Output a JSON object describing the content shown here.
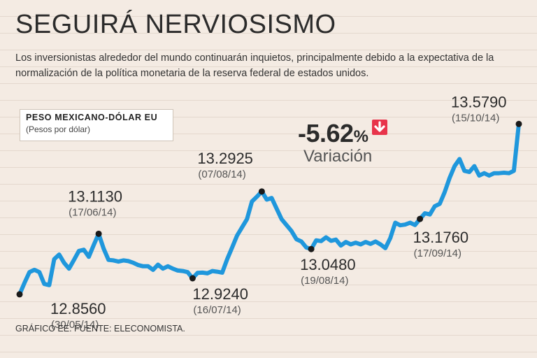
{
  "header": {
    "title": "SEGUIRÁ NERVIOSISMO",
    "subtitle": "Los inversionistas alrededor del mundo continuarán inquietos, principalmente debido a la expectativa de la normalización de la política monetaria de la reserva federal de estados unidos."
  },
  "legend": {
    "title": "PESO MEXICANO-DÓLAR EU",
    "subtitle": "(Pesos por dólar)"
  },
  "variation": {
    "value": "-5.62",
    "percent": "%",
    "label": "Variación",
    "arrow_icon": "arrow-down-icon"
  },
  "footer": {
    "source": "GRÁFICO EE. FUENTE: ELECONOMISTA."
  },
  "colors": {
    "line": "#1f97dc",
    "marker": "#1a1a1a",
    "background": "#f4ebe3",
    "arrow": "#e8344b"
  },
  "chart_data": {
    "type": "line",
    "title": "SEGUIRÁ NERVIOSISMO",
    "ylabel": "Pesos por dólar",
    "xlabel": "",
    "ylim": [
      12.74,
      13.66
    ],
    "grid": true,
    "series": [
      {
        "name": "PESO MEXICANO-DÓLAR EU",
        "values": [
          12.856,
          12.905,
          12.95,
          12.96,
          12.95,
          12.9,
          12.895,
          13.005,
          13.025,
          12.99,
          12.965,
          13.002,
          13.04,
          13.045,
          13.015,
          13.065,
          13.113,
          13.05,
          13.002,
          13.0,
          12.995,
          13.0,
          12.997,
          12.99,
          12.98,
          12.975,
          12.975,
          12.96,
          12.982,
          12.965,
          12.975,
          12.965,
          12.957,
          12.955,
          12.95,
          12.924,
          12.947,
          12.948,
          12.945,
          12.955,
          12.952,
          12.948,
          13.005,
          13.055,
          13.105,
          13.14,
          13.175,
          13.25,
          13.27,
          13.2925,
          13.258,
          13.265,
          13.22,
          13.175,
          13.15,
          13.125,
          13.09,
          13.08,
          13.055,
          13.048,
          13.085,
          13.082,
          13.098,
          13.083,
          13.088,
          13.063,
          13.078,
          13.068,
          13.075,
          13.068,
          13.078,
          13.07,
          13.08,
          13.068,
          13.052,
          13.095,
          13.16,
          13.149,
          13.152,
          13.16,
          13.15,
          13.176,
          13.2,
          13.195,
          13.23,
          13.24,
          13.29,
          13.35,
          13.4,
          13.43,
          13.38,
          13.375,
          13.4,
          13.36,
          13.37,
          13.36,
          13.37,
          13.37,
          13.372,
          13.37,
          13.38,
          13.579
        ]
      }
    ],
    "annotations": [
      {
        "value": "12.8560",
        "date": "(30/05/14)",
        "index": 0,
        "y": 12.856
      },
      {
        "value": "13.1130",
        "date": "(17/06/14)",
        "index": 16,
        "y": 13.113
      },
      {
        "value": "12.9240",
        "date": "(16/07/14)",
        "index": 35,
        "y": 12.924
      },
      {
        "value": "13.2925",
        "date": "(07/08/14)",
        "index": 49,
        "y": 13.2925
      },
      {
        "value": "13.0480",
        "date": "(19/08/14)",
        "index": 59,
        "y": 13.048
      },
      {
        "value": "13.1760",
        "date": "(17/09/14)",
        "index": 81,
        "y": 13.176
      },
      {
        "value": "13.5790",
        "date": "(15/10/14)",
        "index": 101,
        "y": 13.579
      }
    ]
  }
}
